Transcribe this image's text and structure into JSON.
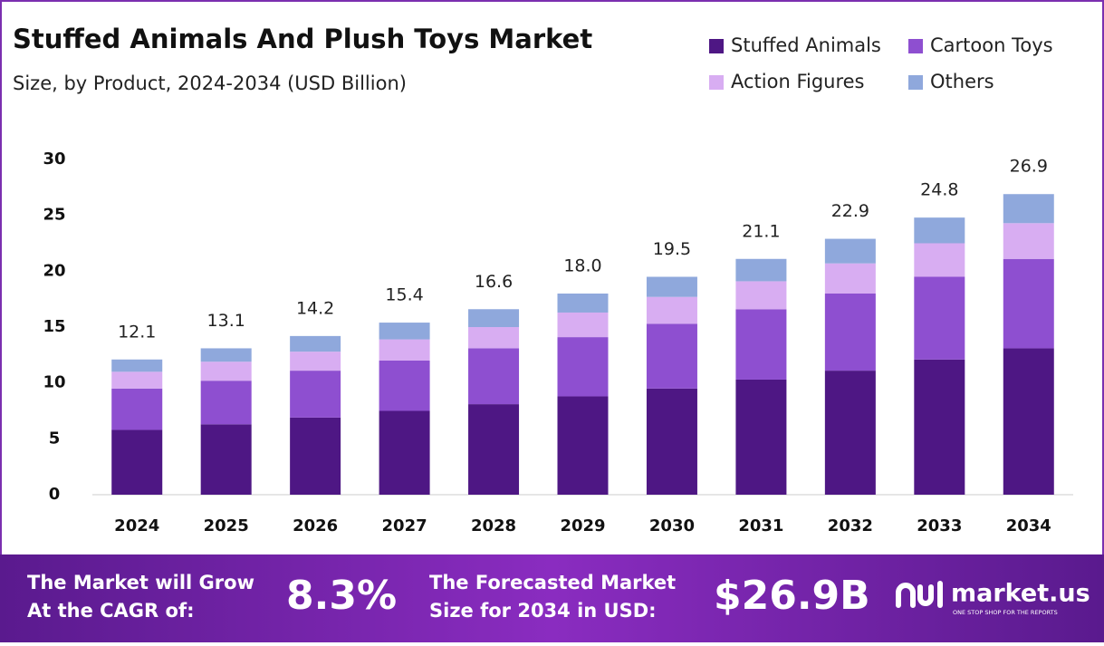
{
  "chart_data": {
    "type": "stacked-bar",
    "title": "Stuffed Animals And Plush Toys Market",
    "subtitle": "Size, by Product, 2024-2034 (USD Billion)",
    "categories": [
      "2024",
      "2025",
      "2026",
      "2027",
      "2028",
      "2029",
      "2030",
      "2031",
      "2032",
      "2033",
      "2034"
    ],
    "series": [
      {
        "name": "Stuffed Animals",
        "color": "#4e1784",
        "values": [
          5.8,
          6.3,
          6.9,
          7.5,
          8.1,
          8.8,
          9.5,
          10.3,
          11.1,
          12.1,
          13.1
        ]
      },
      {
        "name": "Cartoon Toys",
        "color": "#8e4fd0",
        "values": [
          3.7,
          3.9,
          4.2,
          4.5,
          5.0,
          5.3,
          5.8,
          6.3,
          6.9,
          7.4,
          8.0
        ]
      },
      {
        "name": "Action Figures",
        "color": "#d8adf2",
        "values": [
          1.5,
          1.7,
          1.7,
          1.9,
          1.9,
          2.2,
          2.4,
          2.5,
          2.7,
          3.0,
          3.2
        ]
      },
      {
        "name": "Others",
        "color": "#8fa8dc",
        "values": [
          1.1,
          1.2,
          1.4,
          1.5,
          1.6,
          1.7,
          1.8,
          2.0,
          2.2,
          2.3,
          2.6
        ]
      }
    ],
    "totals": [
      12.1,
      13.1,
      14.2,
      15.4,
      16.6,
      18.0,
      19.5,
      21.1,
      22.9,
      24.8,
      26.9
    ],
    "total_labels": [
      "12.1",
      "13.1",
      "14.2",
      "15.4",
      "16.6",
      "18.0",
      "19.5",
      "21.1",
      "22.9",
      "24.8",
      "26.9"
    ],
    "ylim": [
      0,
      30
    ],
    "yticks": [
      0,
      5,
      10,
      15,
      20,
      25,
      30
    ],
    "grid": false
  },
  "footer": {
    "cagr_text": [
      "The Market will Grow",
      "At the CAGR of:"
    ],
    "cagr": "8.3%",
    "forecast_text": [
      "The Forecasted Market",
      "Size for 2034 in USD:"
    ],
    "forecast": "$26.9B",
    "brand": "market.us",
    "tagline": "ONE STOP SHOP FOR THE REPORTS"
  }
}
